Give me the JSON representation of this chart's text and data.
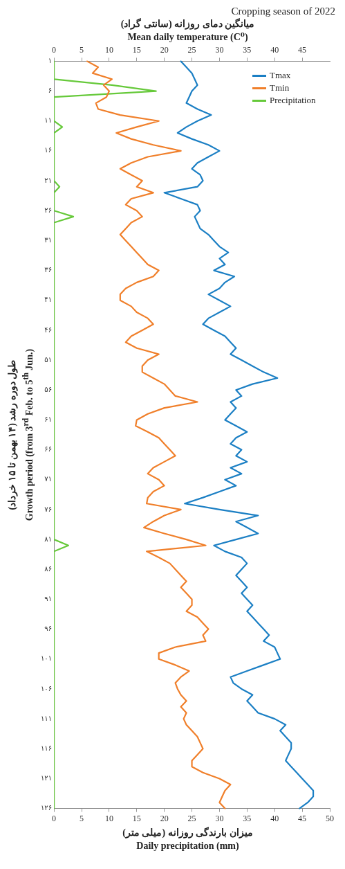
{
  "chart_data": {
    "type": "line",
    "orientation": "horizontal",
    "title": "Cropping season of 2022",
    "x2label": "میانگین دمای روزانه (سانتی گراد)\nMean daily temperature (C⁰)",
    "xlabel": "میزان بارندگی روزانه (میلی متر)\nDaily precipitation (mm)",
    "ylabel": "طول دوره رشد (۱۴ بهمن تا ۱۵ خرداد)\nGrowth period (from 3$^{rd}$ Feb. to 5$^{th}$ Jun.)",
    "categories": [
      "۱",
      null,
      null,
      null,
      null,
      "۶",
      null,
      null,
      null,
      null,
      "۱۱",
      null,
      null,
      null,
      null,
      "۱۶",
      null,
      null,
      null,
      null,
      "۲۱",
      null,
      null,
      null,
      null,
      "۲۶",
      null,
      null,
      null,
      null,
      "۳۱",
      null,
      null,
      null,
      null,
      "۳۶",
      null,
      null,
      null,
      null,
      "۴۱",
      null,
      null,
      null,
      null,
      "۴۶",
      null,
      null,
      null,
      null,
      "۵۱",
      null,
      null,
      null,
      null,
      "۵۶",
      null,
      null,
      null,
      null,
      "۶۱",
      null,
      null,
      null,
      null,
      "۶۶",
      null,
      null,
      null,
      null,
      "۷۱",
      null,
      null,
      null,
      null,
      "۷۶",
      null,
      null,
      null,
      null,
      "۸۱",
      null,
      null,
      null,
      null,
      "۸۶",
      null,
      null,
      null,
      null,
      "۹۱",
      null,
      null,
      null,
      null,
      "۹۶",
      null,
      null,
      null,
      null,
      "۱۰۱",
      null,
      null,
      null,
      null,
      "۱۰۶",
      null,
      null,
      null,
      null,
      "۱۱۱",
      null,
      null,
      null,
      null,
      "۱۱۶",
      null,
      null,
      null,
      null,
      "۱۲۱",
      null,
      null,
      null,
      null,
      "۱۲۶"
    ],
    "xlim": [
      0,
      50
    ],
    "xticks": [
      0,
      5,
      10,
      15,
      20,
      25,
      30,
      35,
      40,
      45,
      50
    ],
    "x2lim": [
      0,
      50
    ],
    "x2ticks": [
      0,
      5,
      10,
      15,
      20,
      25,
      30,
      35,
      40,
      45
    ],
    "legend": "top right",
    "series": [
      {
        "name": "Tmax",
        "color": "#1b7fc4",
        "axis": "x2",
        "values": [
          23,
          24,
          25,
          25.5,
          26,
          25,
          24.5,
          24,
          26,
          28.5,
          26,
          24,
          22.4,
          25,
          28,
          30,
          28,
          26,
          25,
          26.5,
          27,
          26,
          20,
          23,
          26,
          26.5,
          25.5,
          26,
          26.5,
          28,
          29,
          30,
          31.6,
          30,
          31,
          29,
          32.7,
          31,
          30,
          28,
          30,
          32,
          30,
          28,
          27,
          29,
          31,
          32,
          33,
          32,
          34,
          36,
          38,
          40.5,
          36,
          33,
          34,
          32,
          33,
          32,
          31,
          33,
          35,
          33,
          32,
          34,
          33,
          35,
          32,
          34,
          31,
          33,
          30,
          27,
          23.7,
          30,
          37,
          33,
          35,
          37,
          33,
          29,
          31,
          34,
          35,
          34,
          33,
          34,
          35,
          34,
          35,
          36,
          35,
          36,
          37,
          38,
          39,
          38,
          40,
          40.5,
          41,
          38,
          35,
          32,
          32.5,
          34,
          36,
          35,
          36,
          37,
          40,
          42,
          41,
          42,
          43,
          43,
          42.5,
          42,
          43,
          44,
          45,
          46,
          47,
          47,
          46,
          44.5
        ]
      },
      {
        "name": "Tmin",
        "color": "#f07f2a",
        "axis": "x2",
        "values": [
          6,
          8,
          7,
          10.5,
          9,
          10,
          9.5,
          7.6,
          8,
          12,
          19,
          15,
          11.3,
          14,
          18,
          23,
          17,
          14,
          12,
          14,
          16,
          15,
          18,
          14,
          13,
          15,
          16,
          14,
          13,
          12,
          13,
          14,
          15,
          16,
          17,
          19,
          18,
          15,
          13,
          12,
          12,
          14,
          15,
          17,
          18,
          16,
          14,
          13,
          15,
          19,
          17,
          16,
          16,
          18,
          20,
          21,
          22,
          26,
          20,
          17,
          15,
          14.8,
          17,
          19,
          20,
          21,
          22,
          20,
          18,
          17,
          19,
          20,
          18,
          17,
          16.8,
          23,
          20,
          18,
          16.3,
          20,
          24,
          27.5,
          16.8,
          19,
          21,
          22,
          23,
          24,
          23,
          24,
          25,
          25,
          24,
          26,
          27,
          28,
          27,
          27.5,
          22,
          19,
          19,
          22,
          24.5,
          23,
          22,
          22.4,
          23,
          24,
          23,
          24,
          23.5,
          24,
          25,
          26,
          26.5,
          27,
          26,
          25,
          25,
          27,
          30,
          32,
          31,
          30.5,
          30,
          31
        ]
      },
      {
        "name": "Precipitation",
        "color": "#66c93a",
        "values": [
          0,
          0,
          0,
          0,
          10.5,
          18.5,
          0,
          0,
          0,
          0,
          0,
          1.5,
          0,
          0,
          0,
          0,
          0,
          0,
          0,
          0,
          0,
          1,
          0,
          0,
          0,
          0,
          3.5,
          0,
          0,
          0,
          0,
          0,
          0,
          0,
          0,
          0,
          0,
          0,
          0,
          0,
          0,
          0,
          0,
          0,
          0,
          0,
          0,
          0,
          0,
          0,
          0,
          0,
          0,
          0,
          0,
          0,
          0,
          0,
          0,
          0,
          0,
          0,
          0,
          0,
          0,
          0,
          0,
          0,
          0,
          0,
          0,
          0,
          0,
          0,
          0,
          0,
          0,
          0,
          0,
          0,
          0,
          2.6,
          0,
          0,
          0,
          0,
          0,
          0,
          0,
          0,
          0,
          0,
          0,
          0,
          0,
          0,
          0,
          0,
          0,
          0,
          0,
          0,
          0,
          0,
          0,
          0,
          0,
          0,
          0,
          0,
          0,
          0,
          0,
          0,
          0,
          0,
          0,
          0,
          0,
          0,
          0,
          0,
          0,
          0,
          0,
          0
        ]
      }
    ]
  }
}
